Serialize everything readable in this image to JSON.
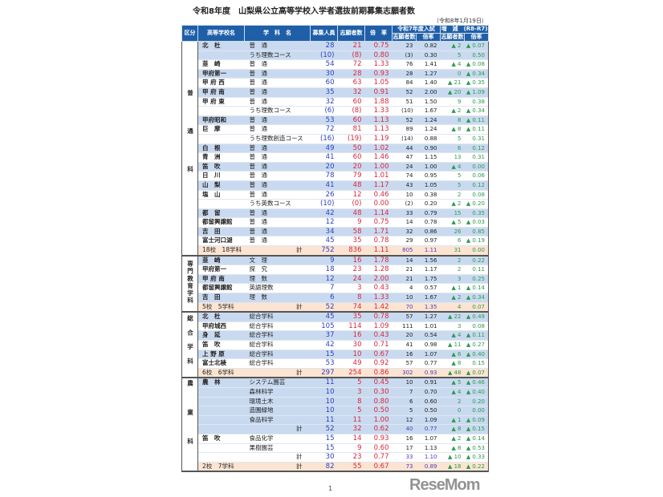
{
  "title": "令和8年度　山梨県公立高等学校入学者選抜前期募集志願者数",
  "date": "（令和8年1月19日）",
  "headers": {
    "category": "区分",
    "school": "高等学校名",
    "subject": "学　科　名",
    "capacity": "募集人員",
    "applicants": "志願者数",
    "ratio": "倍　率",
    "r7": "令和7年度入試",
    "r7_applicants": "志願者数",
    "r7_ratio": "倍率",
    "diff": "増　減　(R8-R7)",
    "diff_applicants": "志願者数",
    "diff_ratio": "倍率"
  },
  "colors": {
    "header": "#1f5fa8",
    "band_blue": "#c9daf0",
    "total": "#fce4d2",
    "capacity": "#2b3fbf",
    "applicants": "#d8283a",
    "diff": "#2c9a4c"
  },
  "sections": [
    {
      "category": "普通科",
      "rows": [
        [
          "北　杜",
          "普　通",
          "28",
          "21",
          "0.75",
          "23",
          "0.82",
          "▲ 2",
          "▲ 0.07",
          "b"
        ],
        [
          "",
          "うち理数コース",
          "(10)",
          "(8)",
          "0.80",
          "(3)",
          "0.30",
          "5",
          "0.50",
          "b"
        ],
        [
          "韮　崎",
          "普　通",
          "54",
          "72",
          "1.33",
          "76",
          "1.41",
          "▲ 4",
          "▲ 0.08",
          "w"
        ],
        [
          "甲府第一",
          "普　通",
          "30",
          "28",
          "0.93",
          "28",
          "1.27",
          "0",
          "▲ 0.34",
          "b"
        ],
        [
          "甲 府 西",
          "普　通",
          "60",
          "63",
          "1.05",
          "84",
          "1.40",
          "▲ 21",
          "▲ 0.35",
          "w"
        ],
        [
          "甲 府 南",
          "普　通",
          "35",
          "32",
          "0.91",
          "52",
          "2.00",
          "▲ 20",
          "▲ 1.09",
          "b"
        ],
        [
          "甲 府 東",
          "普　通",
          "32",
          "60",
          "1.88",
          "51",
          "1.50",
          "9",
          "0.38",
          "w"
        ],
        [
          "",
          "うち理数コース",
          "(6)",
          "(8)",
          "1.33",
          "(10)",
          "1.67",
          "▲ 2",
          "▲ 0.34",
          "w"
        ],
        [
          "甲府昭和",
          "普　通",
          "53",
          "60",
          "1.13",
          "52",
          "1.24",
          "8",
          "▲ 0.11",
          "b"
        ],
        [
          "巨　摩",
          "普　通",
          "72",
          "81",
          "1.13",
          "89",
          "1.24",
          "▲ 8",
          "▲ 0.11",
          "w"
        ],
        [
          "",
          "うち理数創造コース",
          "(16)",
          "(19)",
          "1.19",
          "(14)",
          "0.88",
          "5",
          "0.31",
          "w"
        ],
        [
          "白　根",
          "普　通",
          "49",
          "50",
          "1.02",
          "44",
          "0.90",
          "6",
          "0.12",
          "b"
        ],
        [
          "青　洲",
          "普　通",
          "41",
          "60",
          "1.46",
          "47",
          "1.15",
          "13",
          "0.31",
          "w"
        ],
        [
          "笛　吹",
          "普　通",
          "20",
          "20",
          "1.00",
          "24",
          "1.00",
          "▲ 4",
          "0.00",
          "b"
        ],
        [
          "日　川",
          "普　通",
          "78",
          "79",
          "1.01",
          "74",
          "0.95",
          "5",
          "0.06",
          "w"
        ],
        [
          "山　梨",
          "普　通",
          "41",
          "48",
          "1.17",
          "43",
          "1.05",
          "5",
          "0.12",
          "b"
        ],
        [
          "塩　山",
          "普　通",
          "26",
          "12",
          "0.46",
          "10",
          "0.38",
          "2",
          "0.08",
          "w"
        ],
        [
          "",
          "うち英数コース",
          "(10)",
          "(0)",
          "0.00",
          "(2)",
          "0.20",
          "▲ 2",
          "▲ 0.20",
          "w"
        ],
        [
          "都　留",
          "普　通",
          "42",
          "48",
          "1.14",
          "33",
          "0.79",
          "15",
          "0.35",
          "b"
        ],
        [
          "都留興譲館",
          "普　通",
          "12",
          "9",
          "0.75",
          "14",
          "0.78",
          "▲ 5",
          "▲ 0.03",
          "w"
        ],
        [
          "吉　田",
          "普　通",
          "34",
          "58",
          "1.71",
          "32",
          "0.86",
          "26",
          "0.85",
          "b"
        ],
        [
          "富士河口湖",
          "普　通",
          "45",
          "35",
          "0.78",
          "29",
          "0.97",
          "6",
          "▲ 0.19",
          "w"
        ],
        [
          "18校　18学科",
          "計",
          "752",
          "836",
          "1.11",
          "805",
          "1.11",
          "31",
          "0.00",
          "t"
        ]
      ]
    },
    {
      "category": "専門教育学科",
      "rows": [
        [
          "韮　崎",
          "文　理",
          "9",
          "16",
          "1.78",
          "14",
          "1.56",
          "2",
          "0.22",
          "b"
        ],
        [
          "甲府第一",
          "探　究",
          "18",
          "23",
          "1.28",
          "21",
          "1.17",
          "2",
          "0.11",
          "w"
        ],
        [
          "甲 府 南",
          "理　数",
          "12",
          "24",
          "2.00",
          "21",
          "1.75",
          "3",
          "0.25",
          "b"
        ],
        [
          "都留興譲館",
          "英語理数",
          "7",
          "3",
          "0.43",
          "4",
          "0.57",
          "▲ 1",
          "▲ 0.14",
          "w"
        ],
        [
          "吉　田",
          "理　数",
          "6",
          "8",
          "1.33",
          "10",
          "1.67",
          "▲ 2",
          "▲ 0.34",
          "b"
        ],
        [
          "5校　5学科",
          "計",
          "52",
          "74",
          "1.42",
          "70",
          "1.35",
          "4",
          "0.07",
          "t"
        ]
      ]
    },
    {
      "category": "総合学科",
      "rows": [
        [
          "北　杜",
          "総合学科",
          "45",
          "35",
          "0.78",
          "57",
          "1.27",
          "▲ 22",
          "▲ 0.49",
          "b"
        ],
        [
          "甲府城西",
          "総合学科",
          "105",
          "114",
          "1.09",
          "111",
          "1.01",
          "3",
          "0.08",
          "w"
        ],
        [
          "身　延",
          "総合学科",
          "37",
          "16",
          "0.43",
          "20",
          "0.54",
          "▲ 4",
          "▲ 0.11",
          "b"
        ],
        [
          "笛　吹",
          "総合学科",
          "42",
          "30",
          "0.71",
          "41",
          "0.98",
          "▲ 11",
          "▲ 0.27",
          "w"
        ],
        [
          "上 野 原",
          "総合学科",
          "15",
          "10",
          "0.67",
          "16",
          "1.07",
          "▲ 6",
          "▲ 0.40",
          "b"
        ],
        [
          "富士北稜",
          "総合学科",
          "53",
          "49",
          "0.92",
          "57",
          "0.77",
          "▲ 8",
          "0.15",
          "w"
        ],
        [
          "6校　6学科",
          "計",
          "297",
          "254",
          "0.86",
          "302",
          "0.93",
          "▲ 48",
          "▲ 0.07",
          "t"
        ]
      ]
    },
    {
      "category": "農業科",
      "rows": [
        [
          "農　林",
          "システム園芸",
          "11",
          "5",
          "0.45",
          "10",
          "0.91",
          "▲ 5",
          "▲ 0.46",
          "b"
        ],
        [
          "",
          "森林科学",
          "10",
          "3",
          "0.30",
          "7",
          "0.70",
          "▲ 4",
          "▲ 0.40",
          "b"
        ],
        [
          "",
          "環境土木",
          "10",
          "8",
          "0.80",
          "6",
          "0.60",
          "2",
          "0.20",
          "b"
        ],
        [
          "",
          "造園緑地",
          "10",
          "5",
          "0.50",
          "5",
          "0.50",
          "0",
          "0.00",
          "b"
        ],
        [
          "",
          "食品科学",
          "11",
          "11",
          "1.00",
          "12",
          "1.09",
          "▲ 1",
          "▲ 0.09",
          "b"
        ],
        [
          "",
          "計",
          "52",
          "32",
          "0.62",
          "40",
          "0.77",
          "▲ 8",
          "▲ 0.15",
          "b"
        ],
        [
          "笛　吹",
          "食品化学",
          "15",
          "14",
          "0.93",
          "16",
          "1.07",
          "▲ 2",
          "▲ 0.14",
          "w"
        ],
        [
          "",
          "果樹園芸",
          "15",
          "9",
          "0.60",
          "17",
          "1.13",
          "▲ 8",
          "▲ 0.53",
          "w"
        ],
        [
          "",
          "計",
          "30",
          "23",
          "0.77",
          "33",
          "1.10",
          "▲ 10",
          "▲ 0.33",
          "w"
        ],
        [
          "2校　7学科",
          "計",
          "82",
          "55",
          "0.67",
          "73",
          "0.89",
          "▲ 18",
          "▲ 0.22",
          "t"
        ]
      ]
    }
  ],
  "page_number": "1",
  "watermark": "ReseMom"
}
